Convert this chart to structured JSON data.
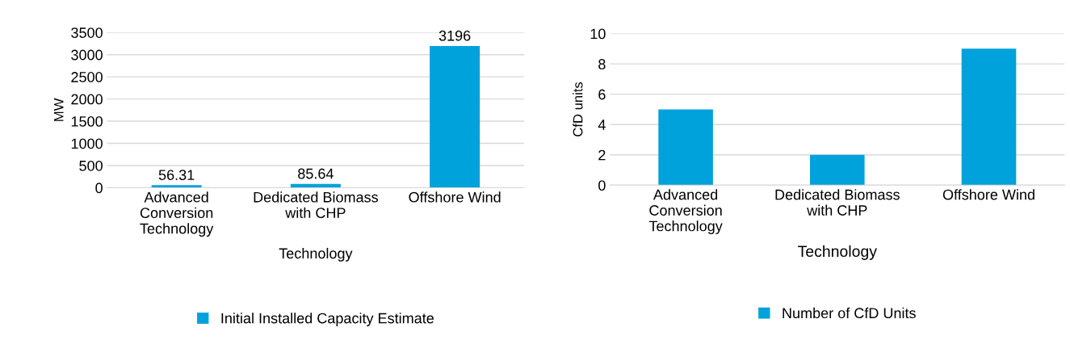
{
  "chart_data": [
    {
      "type": "bar",
      "categories": [
        "Advanced Conversion Technology",
        "Dedicated Biomass with CHP",
        "Offshore Wind"
      ],
      "series": [
        {
          "name": "Initial Installed Capacity Estimate",
          "color": "#00a2dc",
          "values": [
            56.31,
            85.64,
            3196
          ]
        }
      ],
      "xlabel": "Technology",
      "ylabel": "MW",
      "ylim": [
        0,
        3500
      ],
      "yticks": [
        0,
        500,
        1000,
        1500,
        2000,
        2500,
        3000,
        3500
      ],
      "grid": "y",
      "legend": "bottom",
      "data_labels": true
    },
    {
      "type": "bar",
      "categories": [
        "Advanced Conversion Technology",
        "Dedicated Biomass with CHP",
        "Offshore Wind"
      ],
      "series": [
        {
          "name": "Number of CfD Units",
          "color": "#00a2dc",
          "values": [
            5,
            2,
            9
          ]
        }
      ],
      "xlabel": "Technology",
      "ylabel": "CfD units",
      "ylim": [
        0,
        10
      ],
      "yticks": [
        0,
        2,
        4,
        6,
        8,
        10
      ],
      "grid": "y",
      "legend": "bottom"
    }
  ]
}
